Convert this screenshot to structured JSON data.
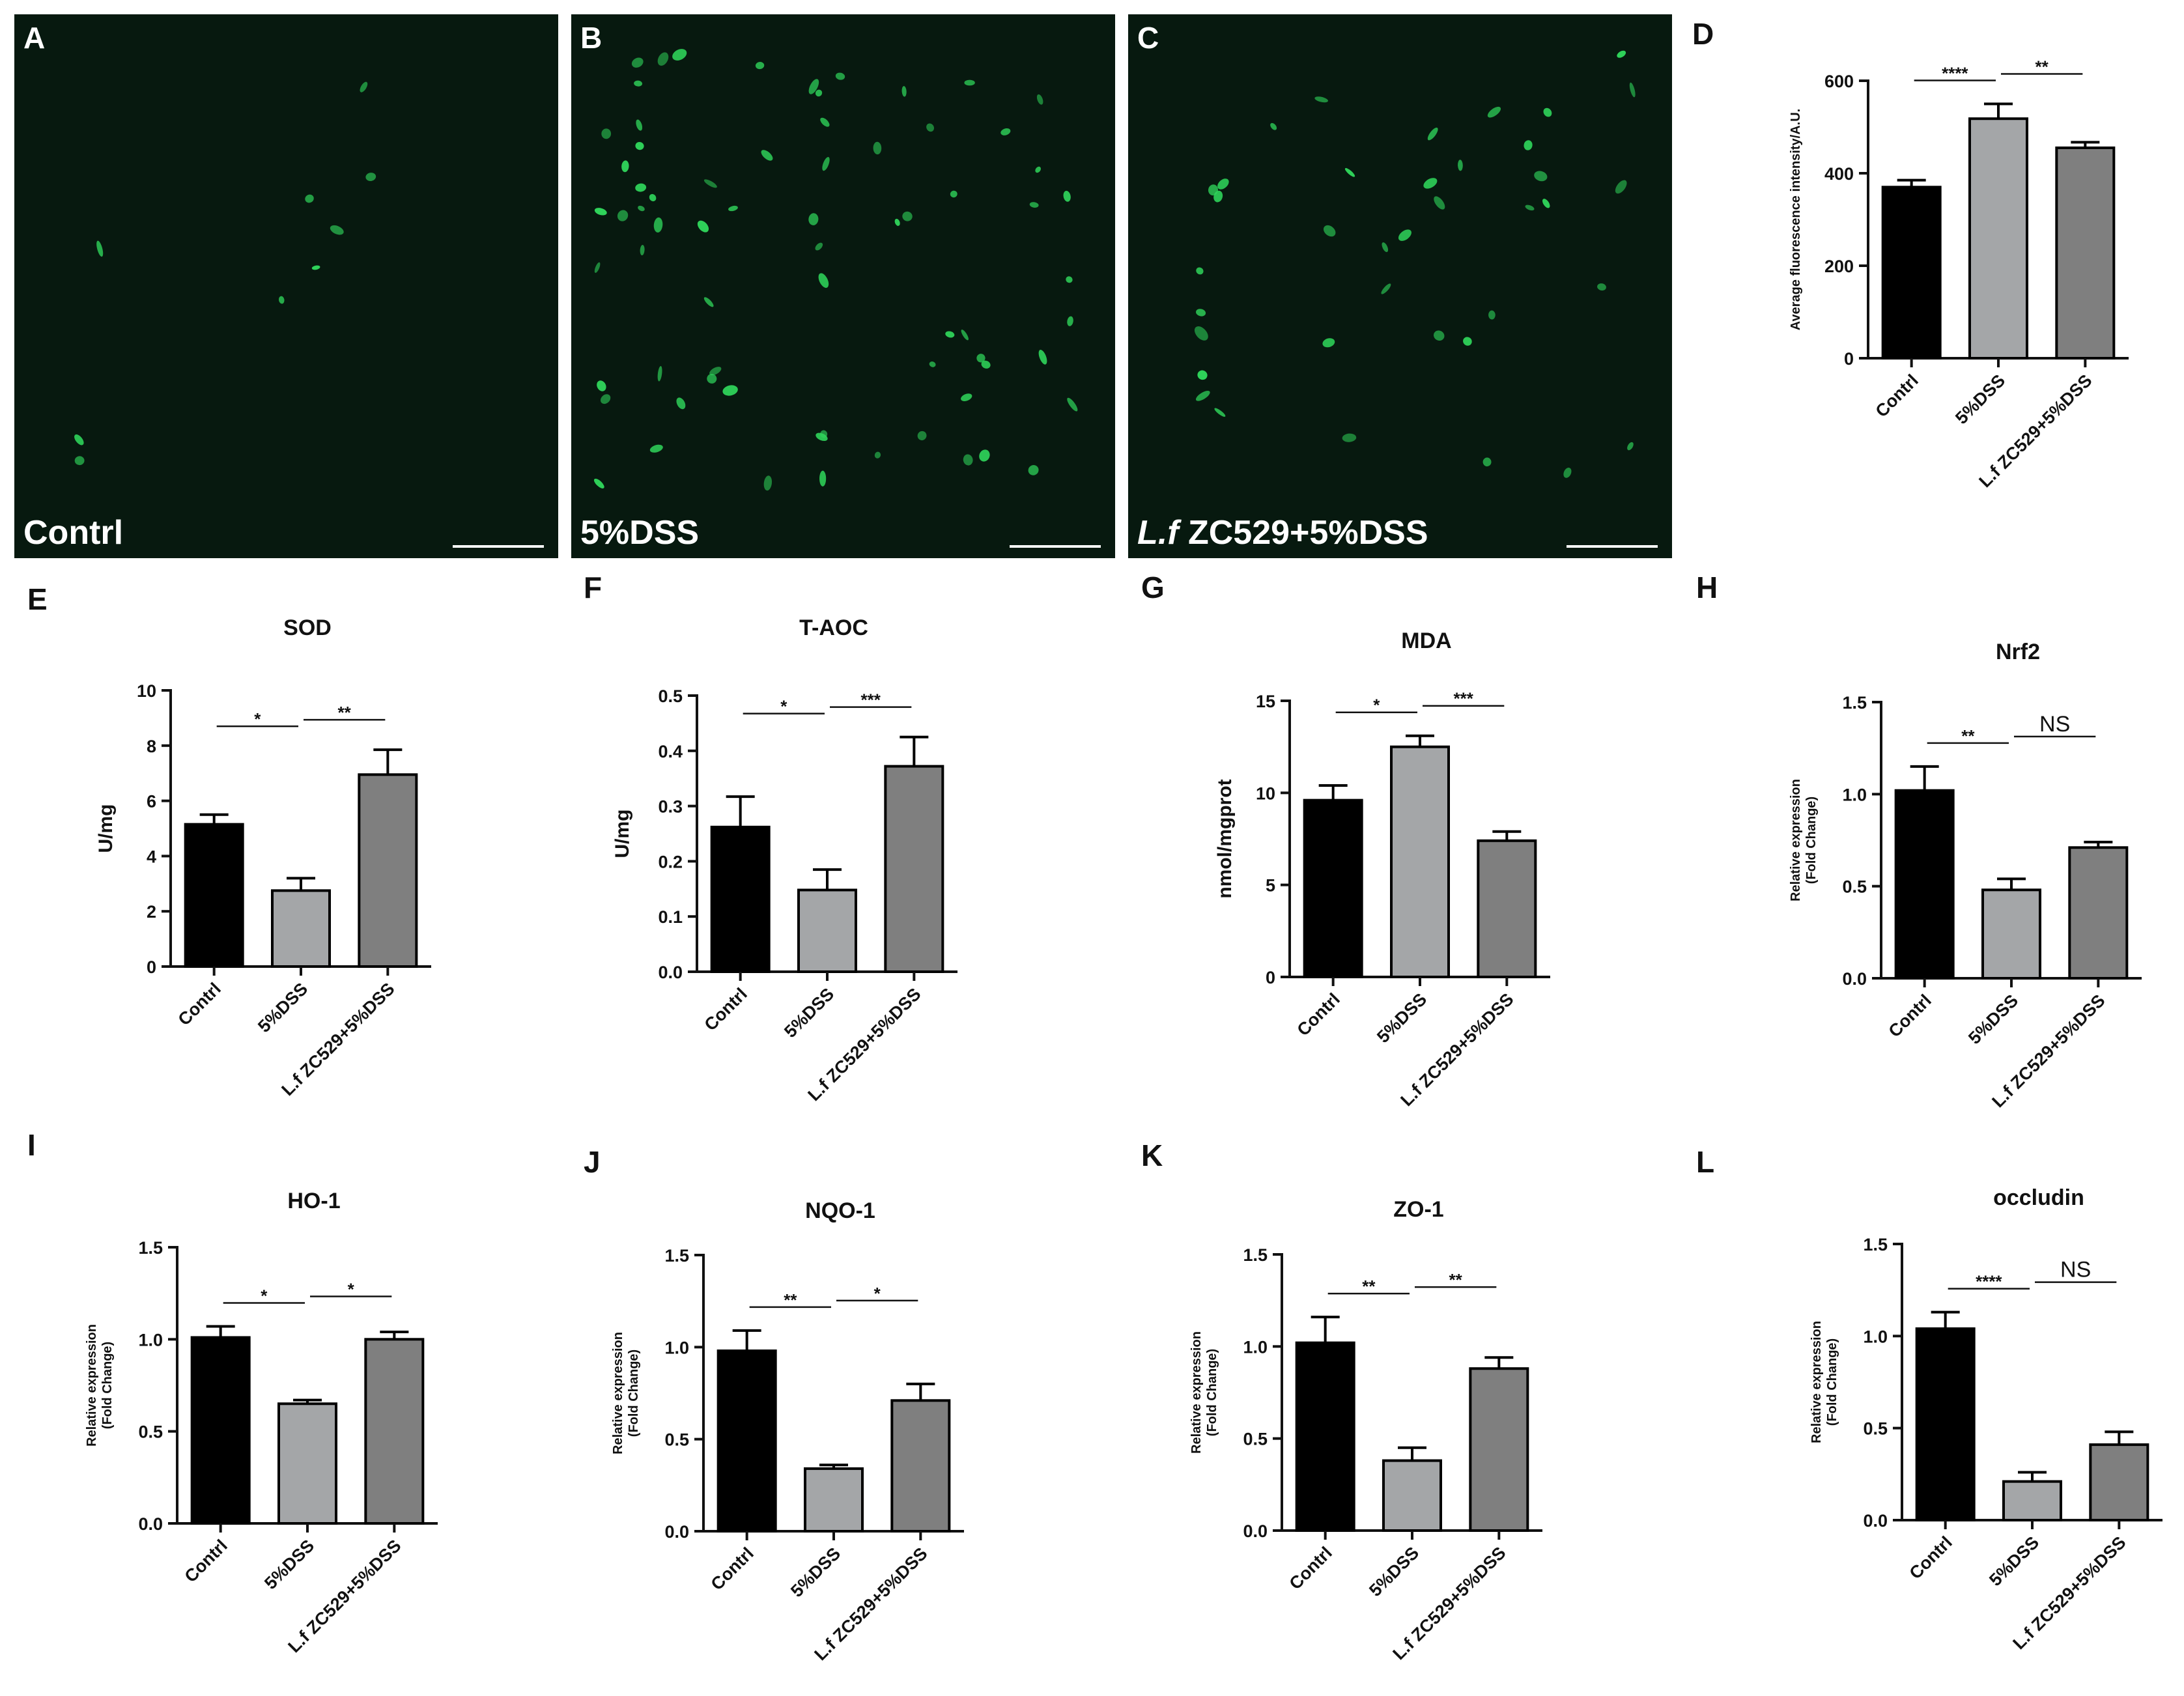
{
  "micrographs": [
    {
      "panel": "A",
      "caption": "Contrl",
      "cells": 9
    },
    {
      "panel": "B",
      "caption": "5%DSS",
      "cells": 70
    },
    {
      "panel": "C",
      "caption_italic": "L.f",
      "caption_rest": " ZC529+5%DSS",
      "cells": 38
    }
  ],
  "colors": {
    "bar_fill": [
      "#000000",
      "#a4a6a8",
      "#7f7f7f"
    ],
    "micrograph_bg": "#07190f",
    "cell_green": "#2fd35a"
  },
  "chart_data": [
    {
      "panel": "D",
      "type": "bar",
      "title": "",
      "categories": [
        "Contrl",
        "5%DSS",
        "L.f ZC529+5%DSS"
      ],
      "values": [
        370,
        518,
        455
      ],
      "errors": [
        15,
        32,
        12
      ],
      "ylim": [
        0,
        600
      ],
      "yticks": [
        "0",
        "200",
        "400",
        "600"
      ],
      "ylabel": "Average fluorescence intensity/A.U.",
      "significance": [
        {
          "a": 0,
          "b": 1,
          "label": "****"
        },
        {
          "a": 1,
          "b": 2,
          "label": "**"
        }
      ]
    },
    {
      "panel": "E",
      "type": "bar",
      "title": "SOD",
      "categories": [
        "Contrl",
        "5%DSS",
        "L.f ZC529+5%DSS"
      ],
      "values": [
        5.15,
        2.75,
        6.95
      ],
      "errors": [
        0.35,
        0.45,
        0.9
      ],
      "ylim": [
        0,
        10
      ],
      "yticks": [
        "0",
        "2",
        "4",
        "6",
        "8",
        "10"
      ],
      "ylabel": "U/mg",
      "significance": [
        {
          "a": 0,
          "b": 1,
          "label": "*"
        },
        {
          "a": 1,
          "b": 2,
          "label": "**"
        }
      ]
    },
    {
      "panel": "F",
      "type": "bar",
      "title": "T-AOC",
      "categories": [
        "Contrl",
        "5%DSS",
        "L.f ZC529+5%DSS"
      ],
      "values": [
        0.262,
        0.148,
        0.372
      ],
      "errors": [
        0.055,
        0.037,
        0.053
      ],
      "ylim": [
        0,
        0.5
      ],
      "yticks": [
        "0.0",
        "0.1",
        "0.2",
        "0.3",
        "0.4",
        "0.5"
      ],
      "ylabel": "U/mg",
      "significance": [
        {
          "a": 0,
          "b": 1,
          "label": "*"
        },
        {
          "a": 1,
          "b": 2,
          "label": "***"
        }
      ]
    },
    {
      "panel": "G",
      "type": "bar",
      "title": "MDA",
      "categories": [
        "Contrl",
        "5%DSS",
        "L.f ZC529+5%DSS"
      ],
      "values": [
        9.6,
        12.5,
        7.4
      ],
      "errors": [
        0.8,
        0.6,
        0.5
      ],
      "ylim": [
        0,
        15
      ],
      "yticks": [
        "0",
        "5",
        "10",
        "15"
      ],
      "ylabel": "nmol/mgprot",
      "significance": [
        {
          "a": 0,
          "b": 1,
          "label": "*"
        },
        {
          "a": 1,
          "b": 2,
          "label": "***"
        }
      ]
    },
    {
      "panel": "H",
      "type": "bar",
      "title": "Nrf2",
      "categories": [
        "Contrl",
        "5%DSS",
        "L.f ZC529+5%DSS"
      ],
      "values": [
        1.02,
        0.48,
        0.71
      ],
      "errors": [
        0.13,
        0.06,
        0.03
      ],
      "ylim": [
        0,
        1.5
      ],
      "yticks": [
        "0.0",
        "0.5",
        "1.0",
        "1.5"
      ],
      "ylabel": "Relative expression",
      "ylabel2": "(Fold Change)",
      "significance": [
        {
          "a": 0,
          "b": 1,
          "label": "**"
        },
        {
          "a": 1,
          "b": 2,
          "label": "NS"
        }
      ]
    },
    {
      "panel": "I",
      "type": "bar",
      "title": "HO-1",
      "categories": [
        "Contrl",
        "5%DSS",
        "L.f ZC529+5%DSS"
      ],
      "values": [
        1.01,
        0.65,
        1.0
      ],
      "errors": [
        0.06,
        0.02,
        0.04
      ],
      "ylim": [
        0,
        1.5
      ],
      "yticks": [
        "0.0",
        "0.5",
        "1.0",
        "1.5"
      ],
      "ylabel": "Relative expression",
      "ylabel2": "(Fold Change)",
      "significance": [
        {
          "a": 0,
          "b": 1,
          "label": "*"
        },
        {
          "a": 1,
          "b": 2,
          "label": "*"
        }
      ]
    },
    {
      "panel": "J",
      "type": "bar",
      "title": "NQO-1",
      "categories": [
        "Contrl",
        "5%DSS",
        "L.f ZC529+5%DSS"
      ],
      "values": [
        0.98,
        0.34,
        0.71
      ],
      "errors": [
        0.11,
        0.02,
        0.09
      ],
      "ylim": [
        0,
        1.5
      ],
      "yticks": [
        "0.0",
        "0.5",
        "1.0",
        "1.5"
      ],
      "ylabel": "Relative expression",
      "ylabel2": "(Fold Change)",
      "significance": [
        {
          "a": 0,
          "b": 1,
          "label": "**"
        },
        {
          "a": 1,
          "b": 2,
          "label": "*"
        }
      ]
    },
    {
      "panel": "K",
      "type": "bar",
      "title": "ZO-1",
      "categories": [
        "Contrl",
        "5%DSS",
        "L.f ZC529+5%DSS"
      ],
      "values": [
        1.02,
        0.38,
        0.88
      ],
      "errors": [
        0.14,
        0.07,
        0.06
      ],
      "ylim": [
        0,
        1.5
      ],
      "yticks": [
        "0.0",
        "0.5",
        "1.0",
        "1.5"
      ],
      "ylabel": "Relative expression",
      "ylabel2": "(Fold Change)",
      "significance": [
        {
          "a": 0,
          "b": 1,
          "label": "**"
        },
        {
          "a": 1,
          "b": 2,
          "label": "**"
        }
      ]
    },
    {
      "panel": "L",
      "type": "bar",
      "title": "occludin",
      "categories": [
        "Contrl",
        "5%DSS",
        "L.f ZC529+5%DSS"
      ],
      "values": [
        1.04,
        0.21,
        0.41
      ],
      "errors": [
        0.09,
        0.05,
        0.07
      ],
      "ylim": [
        0,
        1.5
      ],
      "yticks": [
        "0.0",
        "0.5",
        "1.0",
        "1.5"
      ],
      "ylabel": "Relative expression",
      "ylabel2": "(Fold Change)",
      "significance": [
        {
          "a": 0,
          "b": 1,
          "label": "****"
        },
        {
          "a": 1,
          "b": 2,
          "label": "NS"
        }
      ]
    }
  ]
}
